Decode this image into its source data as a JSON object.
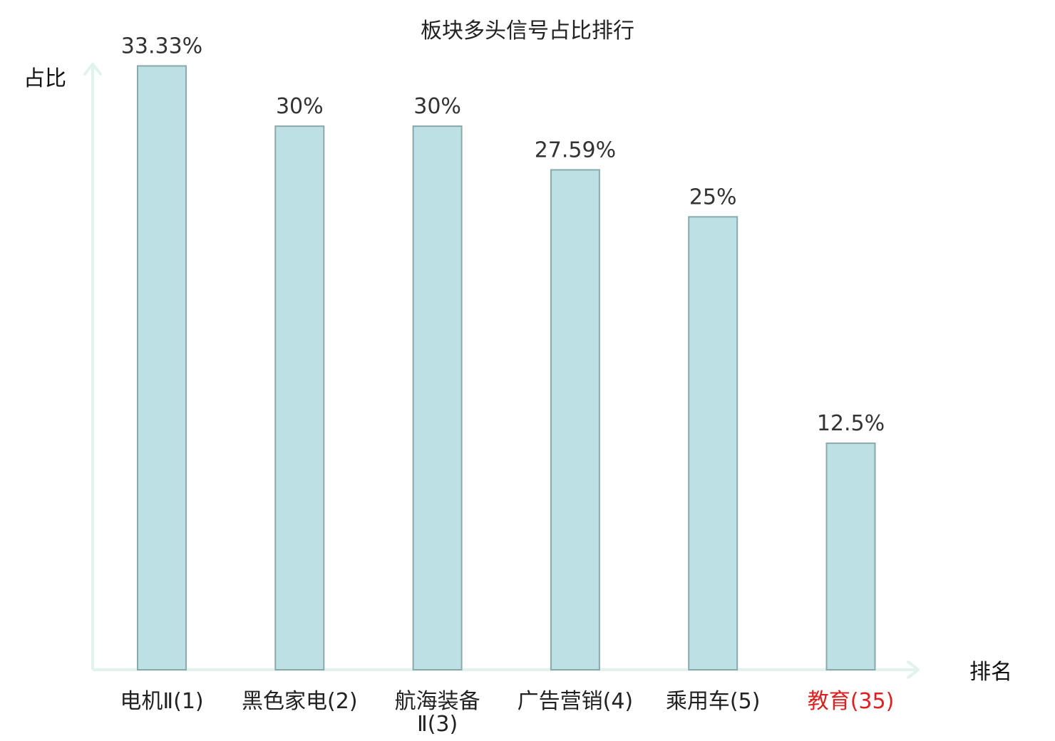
{
  "chart_data": {
    "type": "bar",
    "title": "板块多头信号占比排行",
    "xlabel": "排名",
    "ylabel": "占比",
    "ylim": [
      0,
      35
    ],
    "grid": false,
    "legend": "none",
    "categories": [
      {
        "name": "电机Ⅱ",
        "rank": "(1)",
        "lines": [
          "电机Ⅱ(1)"
        ]
      },
      {
        "name": "黑色家电",
        "rank": "(2)",
        "lines": [
          "黑色家电(2)"
        ]
      },
      {
        "name": "航海装备Ⅱ",
        "rank": "(3)",
        "lines": [
          "航海装备",
          "Ⅱ(3)"
        ]
      },
      {
        "name": "广告营销",
        "rank": "(4)",
        "lines": [
          "广告营销(4)"
        ]
      },
      {
        "name": "乘用车",
        "rank": "(5)",
        "lines": [
          "乘用车(5)"
        ]
      },
      {
        "name": "教育",
        "rank": "(35)",
        "lines": [
          "教育(35)"
        ],
        "highlight": true
      }
    ],
    "values": [
      33.33,
      30,
      30,
      27.59,
      25,
      12.5
    ],
    "value_labels": [
      "33.33%",
      "30%",
      "30%",
      "27.59%",
      "25%",
      "12.5%"
    ]
  },
  "colors": {
    "bar_fill": "#bce0e3",
    "bar_stroke": "#8aa9ab",
    "axis": "#e1f2ef",
    "label": "#222222",
    "highlight": "#e01f1f"
  }
}
